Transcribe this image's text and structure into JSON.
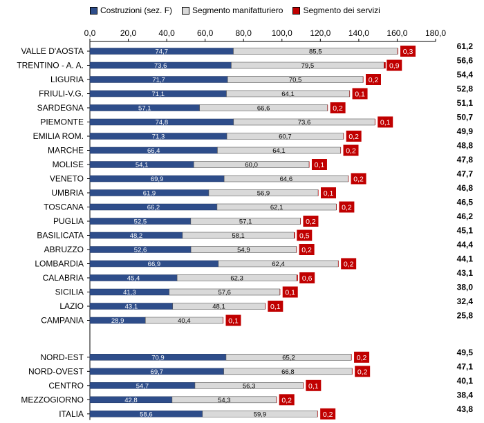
{
  "chart_data": {
    "type": "bar",
    "orientation": "horizontal",
    "stacked": true,
    "xlim": [
      0,
      180
    ],
    "xticks": [
      "0,0",
      "20,0",
      "40,0",
      "60,0",
      "80,0",
      "100,0",
      "120,0",
      "140,0",
      "160,0",
      "180,0"
    ],
    "grid": false,
    "legend_position": "top",
    "colors": {
      "costruzioni": "#2e4d8a",
      "manifatturiero": "#d9d9d9",
      "servizi": "#c00000"
    },
    "series": [
      {
        "name": "Costruzioni (sez. F)",
        "key": "costruzioni"
      },
      {
        "name": "Segmento manifatturiero",
        "key": "manifatturiero"
      },
      {
        "name": "Segmento dei servizi",
        "key": "servizi"
      }
    ],
    "groups": [
      {
        "rows": [
          {
            "label": "VALLE D'AOSTA",
            "costruzioni": 74.7,
            "manifatturiero": 85.5,
            "servizi": 0.3,
            "costruzioni_label": "74,7",
            "manifatturiero_label": "85,5",
            "servizi_label": "0,3",
            "right_value": "61,2"
          },
          {
            "label": "TRENTINO - A. A.",
            "costruzioni": 73.6,
            "manifatturiero": 79.5,
            "servizi": 0.9,
            "costruzioni_label": "73,6",
            "manifatturiero_label": "79,5",
            "servizi_label": "0,9",
            "right_value": "56,6"
          },
          {
            "label": "LIGURIA",
            "costruzioni": 71.7,
            "manifatturiero": 70.5,
            "servizi": 0.2,
            "costruzioni_label": "71,7",
            "manifatturiero_label": "70,5",
            "servizi_label": "0,2",
            "right_value": "54,4"
          },
          {
            "label": "FRIULI-V.G.",
            "costruzioni": 71.1,
            "manifatturiero": 64.1,
            "servizi": 0.1,
            "costruzioni_label": "71,1",
            "manifatturiero_label": "64,1",
            "servizi_label": "0,1",
            "right_value": "52,8"
          },
          {
            "label": "SARDEGNA",
            "costruzioni": 57.1,
            "manifatturiero": 66.6,
            "servizi": 0.2,
            "costruzioni_label": "57,1",
            "manifatturiero_label": "66,6",
            "servizi_label": "0,2",
            "right_value": "51,1"
          },
          {
            "label": "PIEMONTE",
            "costruzioni": 74.8,
            "manifatturiero": 73.6,
            "servizi": 0.1,
            "costruzioni_label": "74,8",
            "manifatturiero_label": "73,6",
            "servizi_label": "0,1",
            "right_value": "50,7"
          },
          {
            "label": "EMILIA ROM.",
            "costruzioni": 71.3,
            "manifatturiero": 60.7,
            "servizi": 0.2,
            "costruzioni_label": "71,3",
            "manifatturiero_label": "60,7",
            "servizi_label": "0,2",
            "right_value": "49,9"
          },
          {
            "label": "MARCHE",
            "costruzioni": 66.4,
            "manifatturiero": 64.1,
            "servizi": 0.2,
            "costruzioni_label": "66,4",
            "manifatturiero_label": "64,1",
            "servizi_label": "0,2",
            "right_value": "48,8"
          },
          {
            "label": "MOLISE",
            "costruzioni": 54.1,
            "manifatturiero": 60.0,
            "servizi": 0.1,
            "costruzioni_label": "54,1",
            "manifatturiero_label": "60,0",
            "servizi_label": "0,1",
            "right_value": "47,8"
          },
          {
            "label": "VENETO",
            "costruzioni": 69.9,
            "manifatturiero": 64.6,
            "servizi": 0.2,
            "costruzioni_label": "69,9",
            "manifatturiero_label": "64,6",
            "servizi_label": "0,2",
            "right_value": "47,7"
          },
          {
            "label": "UMBRIA",
            "costruzioni": 61.9,
            "manifatturiero": 56.9,
            "servizi": 0.1,
            "costruzioni_label": "61,9",
            "manifatturiero_label": "56,9",
            "servizi_label": "0,1",
            "right_value": "46,8"
          },
          {
            "label": "TOSCANA",
            "costruzioni": 66.2,
            "manifatturiero": 62.1,
            "servizi": 0.2,
            "costruzioni_label": "66,2",
            "manifatturiero_label": "62,1",
            "servizi_label": "0,2",
            "right_value": "46,5"
          },
          {
            "label": "PUGLIA",
            "costruzioni": 52.5,
            "manifatturiero": 57.1,
            "servizi": 0.2,
            "costruzioni_label": "52,5",
            "manifatturiero_label": "57,1",
            "servizi_label": "0,2",
            "right_value": "46,2"
          },
          {
            "label": "BASILICATA",
            "costruzioni": 48.2,
            "manifatturiero": 58.1,
            "servizi": 0.5,
            "costruzioni_label": "48,2",
            "manifatturiero_label": "58,1",
            "servizi_label": "0,5",
            "right_value": "45,1"
          },
          {
            "label": "ABRUZZO",
            "costruzioni": 52.6,
            "manifatturiero": 54.9,
            "servizi": 0.2,
            "costruzioni_label": "52,6",
            "manifatturiero_label": "54,9",
            "servizi_label": "0,2",
            "right_value": "44,4"
          },
          {
            "label": "LOMBARDIA",
            "costruzioni": 66.9,
            "manifatturiero": 62.4,
            "servizi": 0.2,
            "costruzioni_label": "66,9",
            "manifatturiero_label": "62,4",
            "servizi_label": "0,2",
            "right_value": "44,1"
          },
          {
            "label": "CALABRIA",
            "costruzioni": 45.4,
            "manifatturiero": 62.3,
            "servizi": 0.6,
            "costruzioni_label": "45,4",
            "manifatturiero_label": "62,3",
            "servizi_label": "0,6",
            "right_value": "43,1"
          },
          {
            "label": "SICILIA",
            "costruzioni": 41.3,
            "manifatturiero": 57.6,
            "servizi": 0.1,
            "costruzioni_label": "41,3",
            "manifatturiero_label": "57,6",
            "servizi_label": "0,1",
            "right_value": "38,0"
          },
          {
            "label": "LAZIO",
            "costruzioni": 43.1,
            "manifatturiero": 48.1,
            "servizi": 0.1,
            "costruzioni_label": "43,1",
            "manifatturiero_label": "48,1",
            "servizi_label": "0,1",
            "right_value": "32,4"
          },
          {
            "label": "CAMPANIA",
            "costruzioni": 28.9,
            "manifatturiero": 40.4,
            "servizi": 0.1,
            "costruzioni_label": "28,9",
            "manifatturiero_label": "40,4",
            "servizi_label": "0,1",
            "right_value": "25,8"
          }
        ]
      },
      {
        "rows": [
          {
            "label": "NORD-EST",
            "costruzioni": 70.9,
            "manifatturiero": 65.2,
            "servizi": 0.2,
            "costruzioni_label": "70,9",
            "manifatturiero_label": "65,2",
            "servizi_label": "0,2",
            "right_value": "49,5"
          },
          {
            "label": "NORD-OVEST",
            "costruzioni": 69.7,
            "manifatturiero": 66.8,
            "servizi": 0.2,
            "costruzioni_label": "69,7",
            "manifatturiero_label": "66,8",
            "servizi_label": "0,2",
            "right_value": "47,1"
          },
          {
            "label": "CENTRO",
            "costruzioni": 54.7,
            "manifatturiero": 56.3,
            "servizi": 0.1,
            "costruzioni_label": "54,7",
            "manifatturiero_label": "56,3",
            "servizi_label": "0,1",
            "right_value": "40,1"
          },
          {
            "label": "MEZZOGIORNO",
            "costruzioni": 42.8,
            "manifatturiero": 54.3,
            "servizi": 0.2,
            "costruzioni_label": "42,8",
            "manifatturiero_label": "54,3",
            "servizi_label": "0,2",
            "right_value": "38,4"
          },
          {
            "label": "ITALIA",
            "costruzioni": 58.6,
            "manifatturiero": 59.9,
            "servizi": 0.2,
            "costruzioni_label": "58,6",
            "manifatturiero_label": "59,9",
            "servizi_label": "0,2",
            "right_value": "43,8"
          }
        ]
      }
    ]
  }
}
